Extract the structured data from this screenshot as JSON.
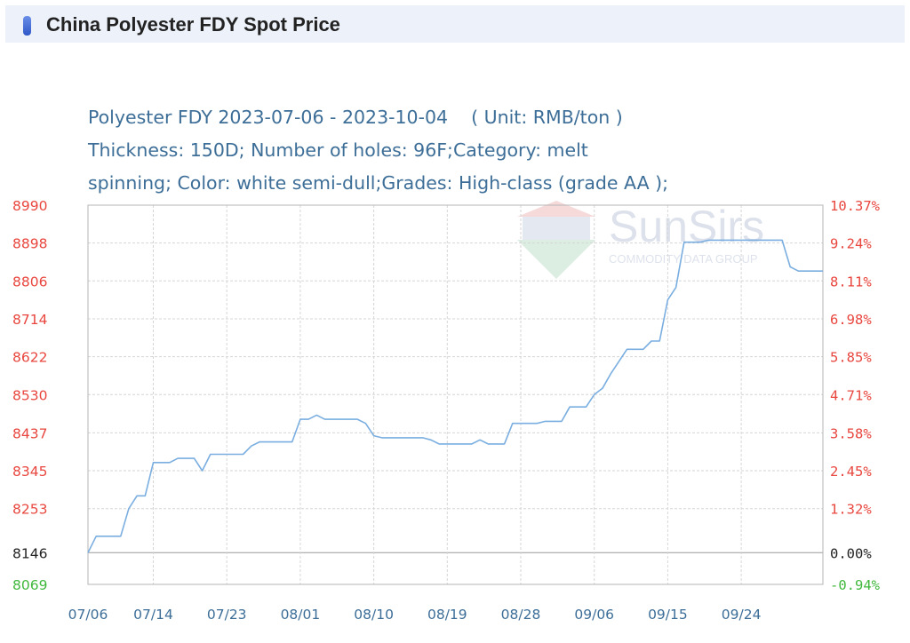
{
  "header": {
    "title": "China Polyester FDY Spot Price"
  },
  "chart_title": {
    "line1": "Polyester FDY 2023-07-06 - 2023-10-04",
    "unit": "( Unit: RMB/ton )",
    "line2": "Thickness: 150D; Number of holes: 96F;Category: melt",
    "line3": "spinning; Color: white semi-dull;Grades: High-class (grade AA );"
  },
  "watermark": {
    "brand": "SunSirs",
    "tagline": "COMMODITY DATA GROUP"
  },
  "colors": {
    "line": "#7aaee0",
    "left_axis": "#e8463e",
    "right_axis": "#e8463e",
    "base": "#222222",
    "below_base": "#40b83c",
    "title": "#3d6e98"
  },
  "chart_data": {
    "type": "line",
    "title": "Polyester FDY 2023-07-06 - 2023-10-04",
    "unit": "RMB/ton",
    "ylim": [
      8069,
      8990
    ],
    "base_value": 8146,
    "y_ticks_left": [
      "8990",
      "8898",
      "8806",
      "8714",
      "8622",
      "8530",
      "8437",
      "8345",
      "8253",
      "8146",
      "8069"
    ],
    "y_ticks_right": [
      "10.37%",
      "9.24%",
      "8.11%",
      "6.98%",
      "5.85%",
      "4.71%",
      "3.58%",
      "2.45%",
      "1.32%",
      "0.00%",
      "-0.94%"
    ],
    "x_ticks": [
      "07/06",
      "07/14",
      "07/23",
      "08/01",
      "08/10",
      "08/19",
      "08/28",
      "09/06",
      "09/15",
      "09/24"
    ],
    "grid": true,
    "series": [
      {
        "x": [
          "07/06",
          "07/07",
          "07/08",
          "07/09",
          "07/10",
          "07/11",
          "07/12",
          "07/13",
          "07/14",
          "07/15",
          "07/16",
          "07/17",
          "07/18",
          "07/19",
          "07/20",
          "07/21",
          "07/22",
          "07/23",
          "07/24",
          "07/25",
          "07/26",
          "07/27",
          "07/28",
          "07/29",
          "07/30",
          "07/31",
          "08/01",
          "08/02",
          "08/03",
          "08/04",
          "08/05",
          "08/06",
          "08/07",
          "08/08",
          "08/09",
          "08/10",
          "08/11",
          "08/12",
          "08/13",
          "08/14",
          "08/15",
          "08/16",
          "08/17",
          "08/18",
          "08/19",
          "08/20",
          "08/21",
          "08/22",
          "08/23",
          "08/24",
          "08/25",
          "08/26",
          "08/27",
          "08/28",
          "08/29",
          "08/30",
          "08/31",
          "09/01",
          "09/02",
          "09/03",
          "09/04",
          "09/05",
          "09/06",
          "09/07",
          "09/08",
          "09/09",
          "09/10",
          "09/11",
          "09/12",
          "09/13",
          "09/14",
          "09/15",
          "09/16",
          "09/17",
          "09/18",
          "09/19",
          "09/20",
          "09/21",
          "09/22",
          "09/23",
          "09/24",
          "09/25",
          "09/26",
          "09/27",
          "09/28",
          "09/29",
          "09/30",
          "10/01",
          "10/02",
          "10/03",
          "10/04"
        ],
        "values": [
          8146,
          8186,
          8186,
          8186,
          8186,
          8253,
          8284,
          8284,
          8365,
          8365,
          8365,
          8375,
          8375,
          8375,
          8345,
          8385,
          8385,
          8385,
          8385,
          8385,
          8405,
          8415,
          8415,
          8415,
          8415,
          8415,
          8470,
          8470,
          8480,
          8470,
          8470,
          8470,
          8470,
          8470,
          8460,
          8430,
          8425,
          8425,
          8425,
          8425,
          8425,
          8425,
          8420,
          8410,
          8410,
          8410,
          8410,
          8410,
          8420,
          8410,
          8410,
          8410,
          8460,
          8460,
          8460,
          8460,
          8465,
          8465,
          8465,
          8500,
          8500,
          8500,
          8530,
          8545,
          8580,
          8610,
          8640,
          8640,
          8640,
          8660,
          8660,
          8760,
          8790,
          8900,
          8900,
          8900,
          8905,
          8905,
          8905,
          8905,
          8905,
          8905,
          8905,
          8905,
          8905,
          8905,
          8840,
          8830,
          8830,
          8830,
          8830
        ]
      }
    ]
  }
}
